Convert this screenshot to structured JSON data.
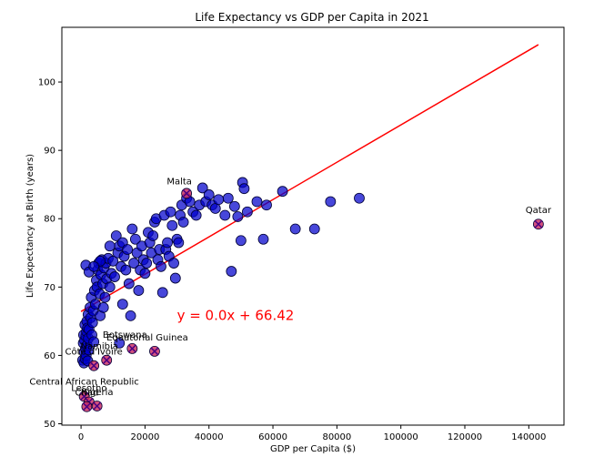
{
  "chart_data": {
    "type": "scatter",
    "title": "Life Expectancy vs GDP per Capita in 2021",
    "xlabel": "GDP per Capita ($)",
    "ylabel": "Life Expectancy at Birth (years)",
    "xlim": [
      -6000,
      151000
    ],
    "ylim": [
      49.8,
      108
    ],
    "xticks": [
      0,
      20000,
      40000,
      60000,
      80000,
      100000,
      120000,
      140000
    ],
    "yticks": [
      50,
      60,
      70,
      80,
      90,
      100
    ],
    "grid": false,
    "colors": {
      "points": "#0000cc",
      "outlier": "#cc3366",
      "outlier_marker": "#4b0082",
      "trend": "#ff0000"
    },
    "trendline": {
      "equation": "y = 0.0x + 66.42",
      "slope": 0.000273,
      "intercept": 66.42,
      "x_range": [
        0,
        143000
      ],
      "label_x": 30000,
      "label_y": 65.2
    },
    "points": [
      [
        500,
        59.3
      ],
      [
        700,
        61.8
      ],
      [
        800,
        63.0
      ],
      [
        900,
        58.9
      ],
      [
        1000,
        60.5
      ],
      [
        1100,
        62.2
      ],
      [
        1200,
        64.5
      ],
      [
        1300,
        59.5
      ],
      [
        1400,
        61.0
      ],
      [
        1500,
        62.8
      ],
      [
        1600,
        60.0
      ],
      [
        1700,
        63.5
      ],
      [
        1800,
        65.0
      ],
      [
        1900,
        61.5
      ],
      [
        2000,
        64.0
      ],
      [
        2100,
        59.2
      ],
      [
        2200,
        66.0
      ],
      [
        2300,
        62.5
      ],
      [
        2400,
        60.8
      ],
      [
        2500,
        63.8
      ],
      [
        1500,
        73.2
      ],
      [
        2800,
        67.0
      ],
      [
        3000,
        65.5
      ],
      [
        3200,
        68.5
      ],
      [
        3400,
        63.0
      ],
      [
        3600,
        64.8
      ],
      [
        3800,
        66.5
      ],
      [
        4000,
        62.0
      ],
      [
        4200,
        69.5
      ],
      [
        4500,
        67.5
      ],
      [
        2500,
        72.2
      ],
      [
        4800,
        71.0
      ],
      [
        5000,
        70.0
      ],
      [
        5200,
        72.5
      ],
      [
        5500,
        73.5
      ],
      [
        5800,
        69.0
      ],
      [
        6000,
        65.8
      ],
      [
        6200,
        71.8
      ],
      [
        6500,
        74.0
      ],
      [
        6800,
        70.5
      ],
      [
        7000,
        67.0
      ],
      [
        7200,
        72.8
      ],
      [
        7500,
        68.5
      ],
      [
        7800,
        73.5
      ],
      [
        8000,
        71.2
      ],
      [
        8500,
        74.2
      ],
      [
        9000,
        70.0
      ],
      [
        9500,
        72.0
      ],
      [
        10000,
        73.8
      ],
      [
        10500,
        71.5
      ],
      [
        11000,
        77.5
      ],
      [
        11500,
        75.0
      ],
      [
        12000,
        76.0
      ],
      [
        12500,
        73.0
      ],
      [
        13000,
        76.5
      ],
      [
        13500,
        74.5
      ],
      [
        14000,
        72.5
      ],
      [
        14500,
        75.5
      ],
      [
        15000,
        70.5
      ],
      [
        15500,
        65.8
      ],
      [
        16000,
        78.5
      ],
      [
        16500,
        73.5
      ],
      [
        17000,
        77.0
      ],
      [
        17500,
        75.0
      ],
      [
        18000,
        69.5
      ],
      [
        18500,
        72.5
      ],
      [
        19000,
        76.0
      ],
      [
        19500,
        74.0
      ],
      [
        20000,
        72.0
      ],
      [
        20500,
        73.5
      ],
      [
        21000,
        78.0
      ],
      [
        21500,
        76.5
      ],
      [
        22000,
        75.0
      ],
      [
        22500,
        77.5
      ],
      [
        23000,
        79.5
      ],
      [
        23500,
        80.0
      ],
      [
        24000,
        74.0
      ],
      [
        24500,
        75.5
      ],
      [
        25000,
        73.0
      ],
      [
        25500,
        69.2
      ],
      [
        26000,
        80.5
      ],
      [
        26500,
        75.5
      ],
      [
        27000,
        76.5
      ],
      [
        27500,
        74.5
      ],
      [
        28000,
        81.0
      ],
      [
        28500,
        79.0
      ],
      [
        29000,
        73.5
      ],
      [
        29500,
        71.3
      ],
      [
        30000,
        77.0
      ],
      [
        30500,
        76.5
      ],
      [
        31000,
        80.5
      ],
      [
        31500,
        82.0
      ],
      [
        32000,
        79.5
      ],
      [
        33000,
        83.0
      ],
      [
        34000,
        82.5
      ],
      [
        35000,
        81.0
      ],
      [
        36000,
        80.5
      ],
      [
        37000,
        82.0
      ],
      [
        38000,
        84.5
      ],
      [
        39000,
        82.5
      ],
      [
        40000,
        83.5
      ],
      [
        41000,
        82.0
      ],
      [
        42000,
        81.5
      ],
      [
        43000,
        82.8
      ],
      [
        45000,
        80.5
      ],
      [
        46000,
        83.0
      ],
      [
        47000,
        72.3
      ],
      [
        48000,
        81.8
      ],
      [
        49000,
        80.3
      ],
      [
        50000,
        76.8
      ],
      [
        50500,
        85.3
      ],
      [
        51000,
        84.4
      ],
      [
        52000,
        81.0
      ],
      [
        55000,
        82.5
      ],
      [
        57000,
        77.0
      ],
      [
        58000,
        82.0
      ],
      [
        63000,
        84.0
      ],
      [
        67000,
        78.5
      ],
      [
        73000,
        78.5
      ],
      [
        78000,
        82.5
      ],
      [
        87000,
        83.0
      ],
      [
        12000,
        61.8
      ],
      [
        13000,
        67.5
      ],
      [
        6000,
        73.8
      ],
      [
        9000,
        76.0
      ],
      [
        4000,
        73.0
      ]
    ],
    "outliers": [
      {
        "name": "Qatar",
        "x": 143000,
        "y": 79.2,
        "label_dx": 0,
        "label_dy": -12
      },
      {
        "name": "Malta",
        "x": 33000,
        "y": 83.7,
        "label_dx": -8,
        "label_dy": -10
      },
      {
        "name": "Botswana",
        "x": 16000,
        "y": 61.0,
        "label_dx": -8,
        "label_dy": -12
      },
      {
        "name": "Equatorial Guinea",
        "x": 23000,
        "y": 60.6,
        "label_dx": -8,
        "label_dy": -12
      },
      {
        "name": "Namibia",
        "x": 8000,
        "y": 59.3,
        "label_dx": -8,
        "label_dy": -12
      },
      {
        "name": "Côte d'Ivoire",
        "x": 4000,
        "y": 58.5,
        "label_dx": 0,
        "label_dy": -12
      },
      {
        "name": "Central African Republic",
        "x": 1000,
        "y": 54.0,
        "label_dx": 0,
        "label_dy": -13
      },
      {
        "name": "Lesotho",
        "x": 2500,
        "y": 53.2,
        "label_dx": 0,
        "label_dy": -12
      },
      {
        "name": "Chad",
        "x": 1800,
        "y": 52.5,
        "label_dx": 0,
        "label_dy": -12
      },
      {
        "name": "Nigeria",
        "x": 5000,
        "y": 52.6,
        "label_dx": 0,
        "label_dy": -12
      }
    ]
  }
}
